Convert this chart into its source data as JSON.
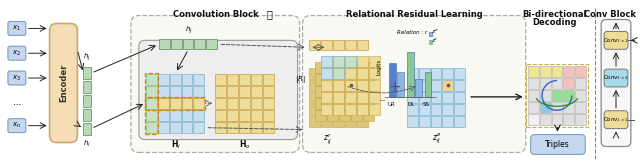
{
  "bg_color": "#ffffff",
  "encoder_color": "#f5deb3",
  "encoder_border": "#c8a96e",
  "input_box_color": "#c5d8f0",
  "input_box_border": "#7a9fc0",
  "grid_blue_color": "#c8dff0",
  "grid_blue_border": "#7ab0d0",
  "grid_green_col_color": "#c8e0c8",
  "grid_green_col_border": "#7ac870",
  "grid_orange_color": "#eedd99",
  "grid_orange_border": "#c8a040",
  "h_cell_color": "#b8d8b8",
  "h_cell_border": "#6a9a6a",
  "conv_block_title": "Convolution Block",
  "rrl_title": "Relational Residual Learning",
  "bidec_title_1": "Bi-directional",
  "bidec_title_2": "Decoding",
  "conv_block2_title": "Conv Block",
  "conv1x1_color": "#eedd99",
  "conv3x3_color": "#a8d8ea",
  "conv_border": "#8a9090",
  "triples_color": "#c5d8f0",
  "section_border": "#aaaaaa",
  "arrow_color": "#333333",
  "label_color": "#000000",
  "dashed_line_color": "#888888",
  "bar_colors": [
    "#5580cc",
    "#88b8d8",
    "#a8cca8",
    "#88b8d8",
    "#a8cca8"
  ],
  "bd_pink": "#f5c0c0",
  "bd_green": "#90e090",
  "bd_blue": "#90c8e8",
  "bd_yellow": "#f0e890"
}
